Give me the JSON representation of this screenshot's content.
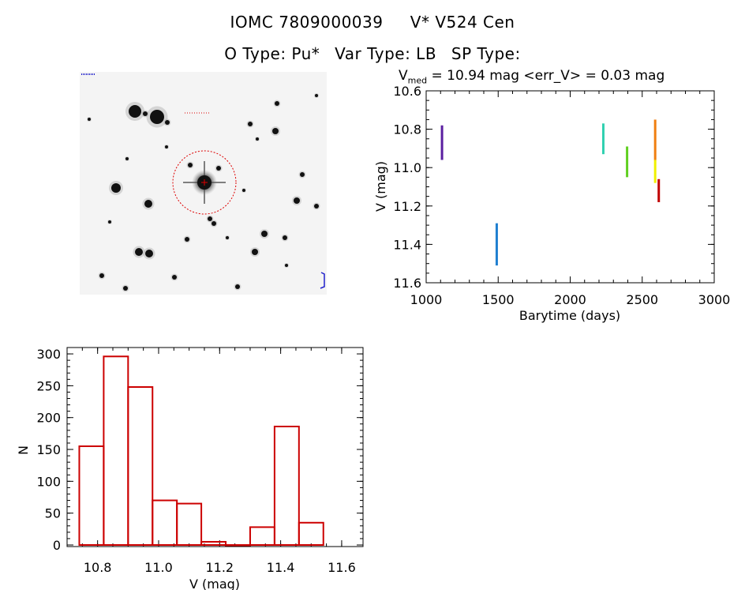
{
  "header": {
    "object_name": "IOMC 7809000039",
    "star_name": "V* V524 Cen",
    "o_type": "O Type: Pu*",
    "var_type": "Var Type: LB",
    "sp_type": "SP Type:",
    "vmed_symbol": "V",
    "vmed_sub": "med",
    "vmed_text": "= 10.94 mag <err_V> = 0.03 mag"
  },
  "colors": {
    "hist_bars": "#cc0000",
    "finder_circle": "#dd0000",
    "finder_bg": "#f4f4f4",
    "star": "#111111"
  },
  "chart_data": [
    {
      "type": "scatter",
      "xlabel": "Barytime (days)",
      "ylabel": "V (mag)",
      "xlim": [
        1000,
        3000
      ],
      "ylim": [
        11.6,
        10.6
      ],
      "y_inverted": true,
      "xticks": [
        1000,
        1500,
        2000,
        2500,
        3000
      ],
      "yticks": [
        10.6,
        10.8,
        11.0,
        11.2,
        11.4,
        11.6
      ],
      "ytick_labels": [
        "10.6",
        "10.8",
        "11.0",
        "11.2",
        "11.4",
        "11.6"
      ],
      "series": [
        {
          "x": 1110,
          "y_min": 10.78,
          "y_max": 10.96,
          "color": "#5a1fa0"
        },
        {
          "x": 1490,
          "y_min": 11.29,
          "y_max": 11.51,
          "color": "#1e7fd0"
        },
        {
          "x": 2230,
          "y_min": 10.77,
          "y_max": 10.93,
          "color": "#30d0b0"
        },
        {
          "x": 2395,
          "y_min": 10.89,
          "y_max": 11.05,
          "color": "#60d020"
        },
        {
          "x": 2590,
          "y_min": 10.75,
          "y_max": 10.96,
          "color": "#f07f10"
        },
        {
          "x": 2590,
          "y_min": 10.96,
          "y_max": 11.08,
          "color": "#f0f000"
        },
        {
          "x": 2615,
          "y_min": 11.06,
          "y_max": 11.18,
          "color": "#c00000"
        }
      ]
    },
    {
      "type": "bar",
      "xlabel": "V (mag)",
      "ylabel": "N",
      "xlim": [
        10.7,
        11.67
      ],
      "ylim": [
        0,
        310
      ],
      "xticks": [
        10.8,
        11.0,
        11.2,
        11.4,
        11.6
      ],
      "xtick_labels": [
        "10.8",
        "11.0",
        "11.2",
        "11.4",
        "11.6"
      ],
      "yticks": [
        0,
        50,
        100,
        150,
        200,
        250,
        300
      ],
      "bin_edges": [
        10.74,
        10.82,
        10.9,
        10.98,
        11.06,
        11.14,
        11.22,
        11.3,
        11.38,
        11.46,
        11.54
      ],
      "values": [
        155,
        296,
        248,
        70,
        65,
        5,
        0,
        28,
        186,
        35
      ]
    }
  ]
}
